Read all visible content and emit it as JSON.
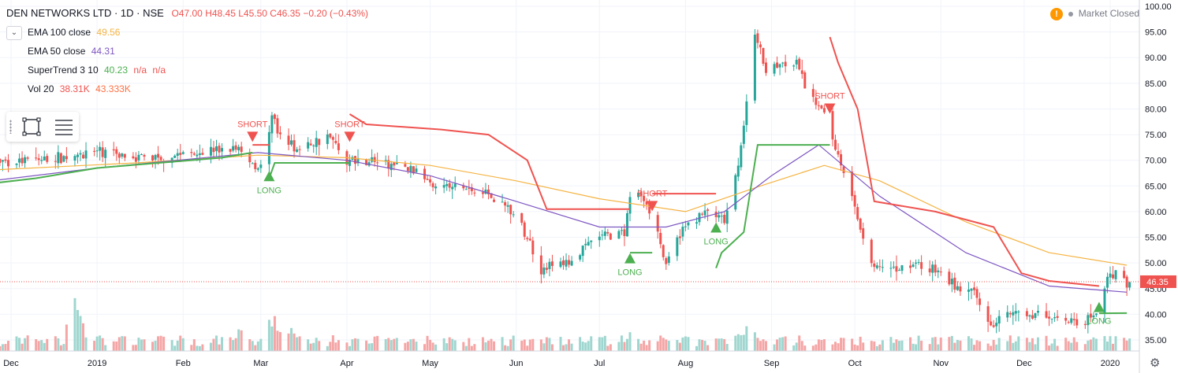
{
  "header": {
    "symbol": "DEN NETWORKS LTD · 1D · NSE",
    "open": "O47.00",
    "high": "H48.45",
    "low": "L45.50",
    "close": "C46.35",
    "change": "−0.20 (−0.43%)"
  },
  "legend": {
    "collapse_icon": "chevron-down-icon",
    "items": [
      {
        "name": "EMA 100 close",
        "values": [
          "49.56"
        ],
        "colors": [
          "#f5b342"
        ]
      },
      {
        "name": "EMA 50 close",
        "values": [
          "44.31"
        ],
        "colors": [
          "#7e57c2"
        ]
      },
      {
        "name": "SuperTrend 3 10",
        "values": [
          "40.23",
          "n/a",
          "n/a"
        ],
        "colors": [
          "#4caf50",
          "#ef5350",
          "#ef5350"
        ]
      },
      {
        "name": "Vol 20",
        "values": [
          "38.31K",
          "43.333K"
        ],
        "colors": [
          "#ef5350",
          "#ff7043"
        ]
      }
    ]
  },
  "toolbox": {
    "icons": [
      "rectangle-select-icon",
      "menu-lines-icon"
    ]
  },
  "status": {
    "text": "Market Closed",
    "warn_glyph": "!"
  },
  "colors": {
    "up": "#26a69a",
    "down": "#ef5350",
    "ema100": "#f5b342",
    "ema50": "#7e57c2",
    "st_up": "#4caf50",
    "st_down": "#ef5350",
    "vol_up": "#9fd6cf",
    "vol_down": "#f5a5a5"
  },
  "chart_data": {
    "type": "candlestick",
    "title": "DEN NETWORKS LTD · 1D · NSE",
    "ylim": [
      32.5,
      101
    ],
    "y_ticks": [
      "100.00",
      "95.00",
      "90.00",
      "85.00",
      "80.00",
      "75.00",
      "70.00",
      "65.00",
      "60.00",
      "55.00",
      "50.00",
      "45.00",
      "40.00",
      "35.00"
    ],
    "x_ticks": [
      {
        "label": "Dec",
        "date": "2018-12-01"
      },
      {
        "label": "2019",
        "date": "2019-01-01"
      },
      {
        "label": "Feb",
        "date": "2019-02-01"
      },
      {
        "label": "Mar",
        "date": "2019-03-01"
      },
      {
        "label": "Apr",
        "date": "2019-04-01"
      },
      {
        "label": "May",
        "date": "2019-05-01"
      },
      {
        "label": "Jun",
        "date": "2019-06-01"
      },
      {
        "label": "Jul",
        "date": "2019-07-01"
      },
      {
        "label": "Aug",
        "date": "2019-08-01"
      },
      {
        "label": "Sep",
        "date": "2019-09-01"
      },
      {
        "label": "Oct",
        "date": "2019-10-01"
      },
      {
        "label": "Nov",
        "date": "2019-11-01"
      },
      {
        "label": "Dec",
        "date": "2019-12-01"
      },
      {
        "label": "2020",
        "date": "2020-01-01"
      }
    ],
    "x_range": [
      "2018-11-01",
      "2020-01-08"
    ],
    "last_price": "46.35",
    "last_value": 46.35,
    "price_path": [
      [
        "2018-11-01",
        69
      ],
      [
        "2018-11-20",
        69.5
      ],
      [
        "2018-12-10",
        70
      ],
      [
        "2018-12-31",
        71.5
      ],
      [
        "2019-01-20",
        70.5
      ],
      [
        "2019-02-10",
        72
      ],
      [
        "2019-02-22",
        72
      ],
      [
        "2019-02-27",
        69
      ],
      [
        "2019-03-02",
        69
      ],
      [
        "2019-03-05",
        80
      ],
      [
        "2019-03-08",
        74
      ],
      [
        "2019-03-15",
        72
      ],
      [
        "2019-03-25",
        75
      ],
      [
        "2019-04-01",
        70
      ],
      [
        "2019-04-10",
        70
      ],
      [
        "2019-04-25",
        68
      ],
      [
        "2019-05-05",
        65
      ],
      [
        "2019-05-20",
        64
      ],
      [
        "2019-05-29",
        61
      ],
      [
        "2019-06-05",
        55
      ],
      [
        "2019-06-10",
        49
      ],
      [
        "2019-06-20",
        50
      ],
      [
        "2019-06-30",
        55
      ],
      [
        "2019-07-10",
        56
      ],
      [
        "2019-07-13",
        65
      ],
      [
        "2019-07-18",
        62
      ],
      [
        "2019-07-22",
        56
      ],
      [
        "2019-07-25",
        49
      ],
      [
        "2019-07-30",
        56
      ],
      [
        "2019-08-05",
        59
      ],
      [
        "2019-08-10",
        60
      ],
      [
        "2019-08-15",
        58
      ],
      [
        "2019-08-20",
        68
      ],
      [
        "2019-08-24",
        87
      ],
      [
        "2019-08-26",
        95
      ],
      [
        "2019-08-30",
        88
      ],
      [
        "2019-09-10",
        89
      ],
      [
        "2019-09-14",
        83
      ],
      [
        "2019-09-20",
        80
      ],
      [
        "2019-09-23",
        74
      ],
      [
        "2019-09-27",
        68
      ],
      [
        "2019-10-03",
        57
      ],
      [
        "2019-10-07",
        50
      ],
      [
        "2019-10-12",
        48
      ],
      [
        "2019-10-22",
        50
      ],
      [
        "2019-11-01",
        48
      ],
      [
        "2019-11-07",
        45
      ],
      [
        "2019-11-13",
        44
      ],
      [
        "2019-11-18",
        38.5
      ],
      [
        "2019-11-25",
        39.5
      ],
      [
        "2019-12-05",
        40
      ],
      [
        "2019-12-15",
        39
      ],
      [
        "2019-12-23",
        38.5
      ],
      [
        "2019-12-27",
        40
      ],
      [
        "2019-12-30",
        46
      ],
      [
        "2020-01-02",
        48
      ],
      [
        "2020-01-07",
        46.35
      ]
    ],
    "series": [
      {
        "name": "EMA 100 close",
        "type": "line",
        "color": "#f5b342",
        "points": [
          [
            "2018-11-01",
            67.5
          ],
          [
            "2019-01-15",
            69.5
          ],
          [
            "2019-02-28",
            71
          ],
          [
            "2019-04-01",
            70.5
          ],
          [
            "2019-05-01",
            69
          ],
          [
            "2019-06-01",
            66
          ],
          [
            "2019-07-01",
            62.5
          ],
          [
            "2019-08-01",
            60
          ],
          [
            "2019-08-28",
            65
          ],
          [
            "2019-09-20",
            69
          ],
          [
            "2019-10-10",
            66
          ],
          [
            "2019-11-10",
            58
          ],
          [
            "2019-12-10",
            52
          ],
          [
            "2020-01-07",
            49.56
          ]
        ]
      },
      {
        "name": "EMA 50 close",
        "type": "line",
        "color": "#7e57c2",
        "points": [
          [
            "2018-11-01",
            64.5
          ],
          [
            "2019-01-01",
            68.5
          ],
          [
            "2019-02-28",
            71.5
          ],
          [
            "2019-04-01",
            70
          ],
          [
            "2019-05-01",
            67
          ],
          [
            "2019-06-01",
            62
          ],
          [
            "2019-07-01",
            57
          ],
          [
            "2019-07-25",
            57
          ],
          [
            "2019-08-15",
            60
          ],
          [
            "2019-09-01",
            67
          ],
          [
            "2019-09-18",
            73
          ],
          [
            "2019-10-10",
            63
          ],
          [
            "2019-11-10",
            52
          ],
          [
            "2019-12-10",
            45.5
          ],
          [
            "2020-01-07",
            44.31
          ]
        ]
      },
      {
        "name": "SuperTrend 3 10",
        "type": "supertrend",
        "segments": [
          {
            "dir": "up",
            "points": [
              [
                "2018-11-01",
                61.5
              ],
              [
                "2018-11-08",
                64.5
              ],
              [
                "2018-12-10",
                66.5
              ],
              [
                "2019-01-01",
                68.5
              ],
              [
                "2019-02-15",
                70.5
              ],
              [
                "2019-02-26",
                71.5
              ]
            ]
          },
          {
            "dir": "down",
            "points": [
              [
                "2019-02-26",
                73
              ],
              [
                "2019-03-04",
                73
              ]
            ]
          },
          {
            "dir": "up",
            "points": [
              [
                "2019-03-04",
                66.5
              ],
              [
                "2019-03-06",
                69.5
              ],
              [
                "2019-04-02",
                69.5
              ]
            ]
          },
          {
            "dir": "down",
            "points": [
              [
                "2019-04-02",
                79
              ],
              [
                "2019-04-08",
                77
              ],
              [
                "2019-05-05",
                76
              ],
              [
                "2019-05-22",
                75
              ],
              [
                "2019-06-05",
                70
              ],
              [
                "2019-06-12",
                60.5
              ],
              [
                "2019-07-12",
                60.5
              ]
            ]
          },
          {
            "dir": "up",
            "points": [
              [
                "2019-07-12",
                52
              ],
              [
                "2019-07-20",
                52
              ]
            ]
          },
          {
            "dir": "down",
            "points": [
              [
                "2019-07-20",
                63.5
              ],
              [
                "2019-08-12",
                63.5
              ]
            ]
          },
          {
            "dir": "up",
            "points": [
              [
                "2019-08-12",
                49
              ],
              [
                "2019-08-14",
                52
              ],
              [
                "2019-08-22",
                56
              ],
              [
                "2019-08-27",
                73
              ],
              [
                "2019-09-22",
                73
              ]
            ]
          },
          {
            "dir": "down",
            "points": [
              [
                "2019-09-22",
                94
              ],
              [
                "2019-09-25",
                89
              ],
              [
                "2019-10-02",
                80
              ],
              [
                "2019-10-08",
                62
              ],
              [
                "2019-10-30",
                60
              ],
              [
                "2019-11-20",
                57
              ],
              [
                "2019-11-30",
                48
              ],
              [
                "2019-12-10",
                46.5
              ],
              [
                "2019-12-28",
                45.5
              ]
            ]
          },
          {
            "dir": "up",
            "points": [
              [
                "2019-12-28",
                40.2
              ],
              [
                "2020-01-07",
                40.23
              ]
            ]
          }
        ]
      }
    ],
    "signals": [
      {
        "type": "short",
        "label": "SHORT",
        "date": "2019-02-26",
        "value": 74.5
      },
      {
        "type": "long",
        "label": "LONG",
        "date": "2019-03-04",
        "value": 67
      },
      {
        "type": "short",
        "label": "SHORT",
        "date": "2019-04-02",
        "value": 74.5
      },
      {
        "type": "long",
        "label": "LONG",
        "date": "2019-07-12",
        "value": 51
      },
      {
        "type": "short",
        "label": "SHORT",
        "date": "2019-07-20",
        "value": 61
      },
      {
        "type": "long",
        "label": "LONG",
        "date": "2019-08-12",
        "value": 57
      },
      {
        "type": "short",
        "label": "SHORT",
        "date": "2019-09-22",
        "value": 80
      },
      {
        "type": "long",
        "label": "LONG",
        "date": "2019-12-28",
        "value": 41.5
      }
    ],
    "volume": {
      "name": "Vol 20",
      "spikes": [
        {
          "date": "2018-11-22",
          "value": 3
        },
        {
          "date": "2018-12-24",
          "value": 9
        },
        {
          "date": "2019-02-22",
          "value": 3.5
        },
        {
          "date": "2019-03-04",
          "value": 4
        },
        {
          "date": "2019-03-06",
          "value": 4.5
        },
        {
          "date": "2019-03-12",
          "value": 3.5
        },
        {
          "date": "2019-07-13",
          "value": 3
        },
        {
          "date": "2019-08-20",
          "value": 3
        },
        {
          "date": "2019-08-24",
          "value": 4.5
        },
        {
          "date": "2019-09-20",
          "value": 2
        }
      ]
    }
  }
}
